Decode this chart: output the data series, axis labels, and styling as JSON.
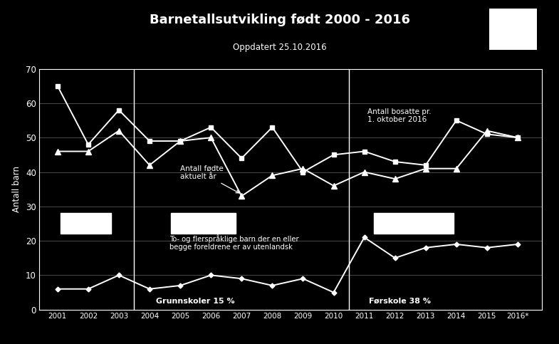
{
  "title": "Barnetallsutvikling født 2000 - 2016",
  "subtitle": "Oppdatert 25.10.2016",
  "ylabel": "Antall barn",
  "background_color": "#000000",
  "text_color": "#ffffff",
  "grid_color": "#555555",
  "years": [
    2001,
    2002,
    2003,
    2004,
    2005,
    2006,
    2007,
    2008,
    2009,
    2010,
    2011,
    2012,
    2013,
    2014,
    2015,
    2016
  ],
  "series_fodte": {
    "values": [
      46,
      46,
      52,
      42,
      49,
      50,
      33,
      39,
      41,
      36,
      40,
      38,
      41,
      41,
      52,
      50
    ]
  },
  "series_bosatte": {
    "values": [
      65,
      48,
      58,
      49,
      49,
      53,
      44,
      53,
      40,
      45,
      46,
      43,
      42,
      55,
      51,
      50
    ]
  },
  "series_flerspraklige": {
    "values": [
      6,
      6,
      10,
      6,
      7,
      10,
      9,
      7,
      9,
      5,
      21,
      15,
      18,
      19,
      18,
      19
    ]
  },
  "vlines": [
    2003.5,
    2010.5
  ],
  "ylim": [
    0,
    70
  ],
  "yticks": [
    0,
    10,
    20,
    30,
    40,
    50,
    60,
    70
  ],
  "xlim_left": 2000.4,
  "xlim_right": 2016.8
}
